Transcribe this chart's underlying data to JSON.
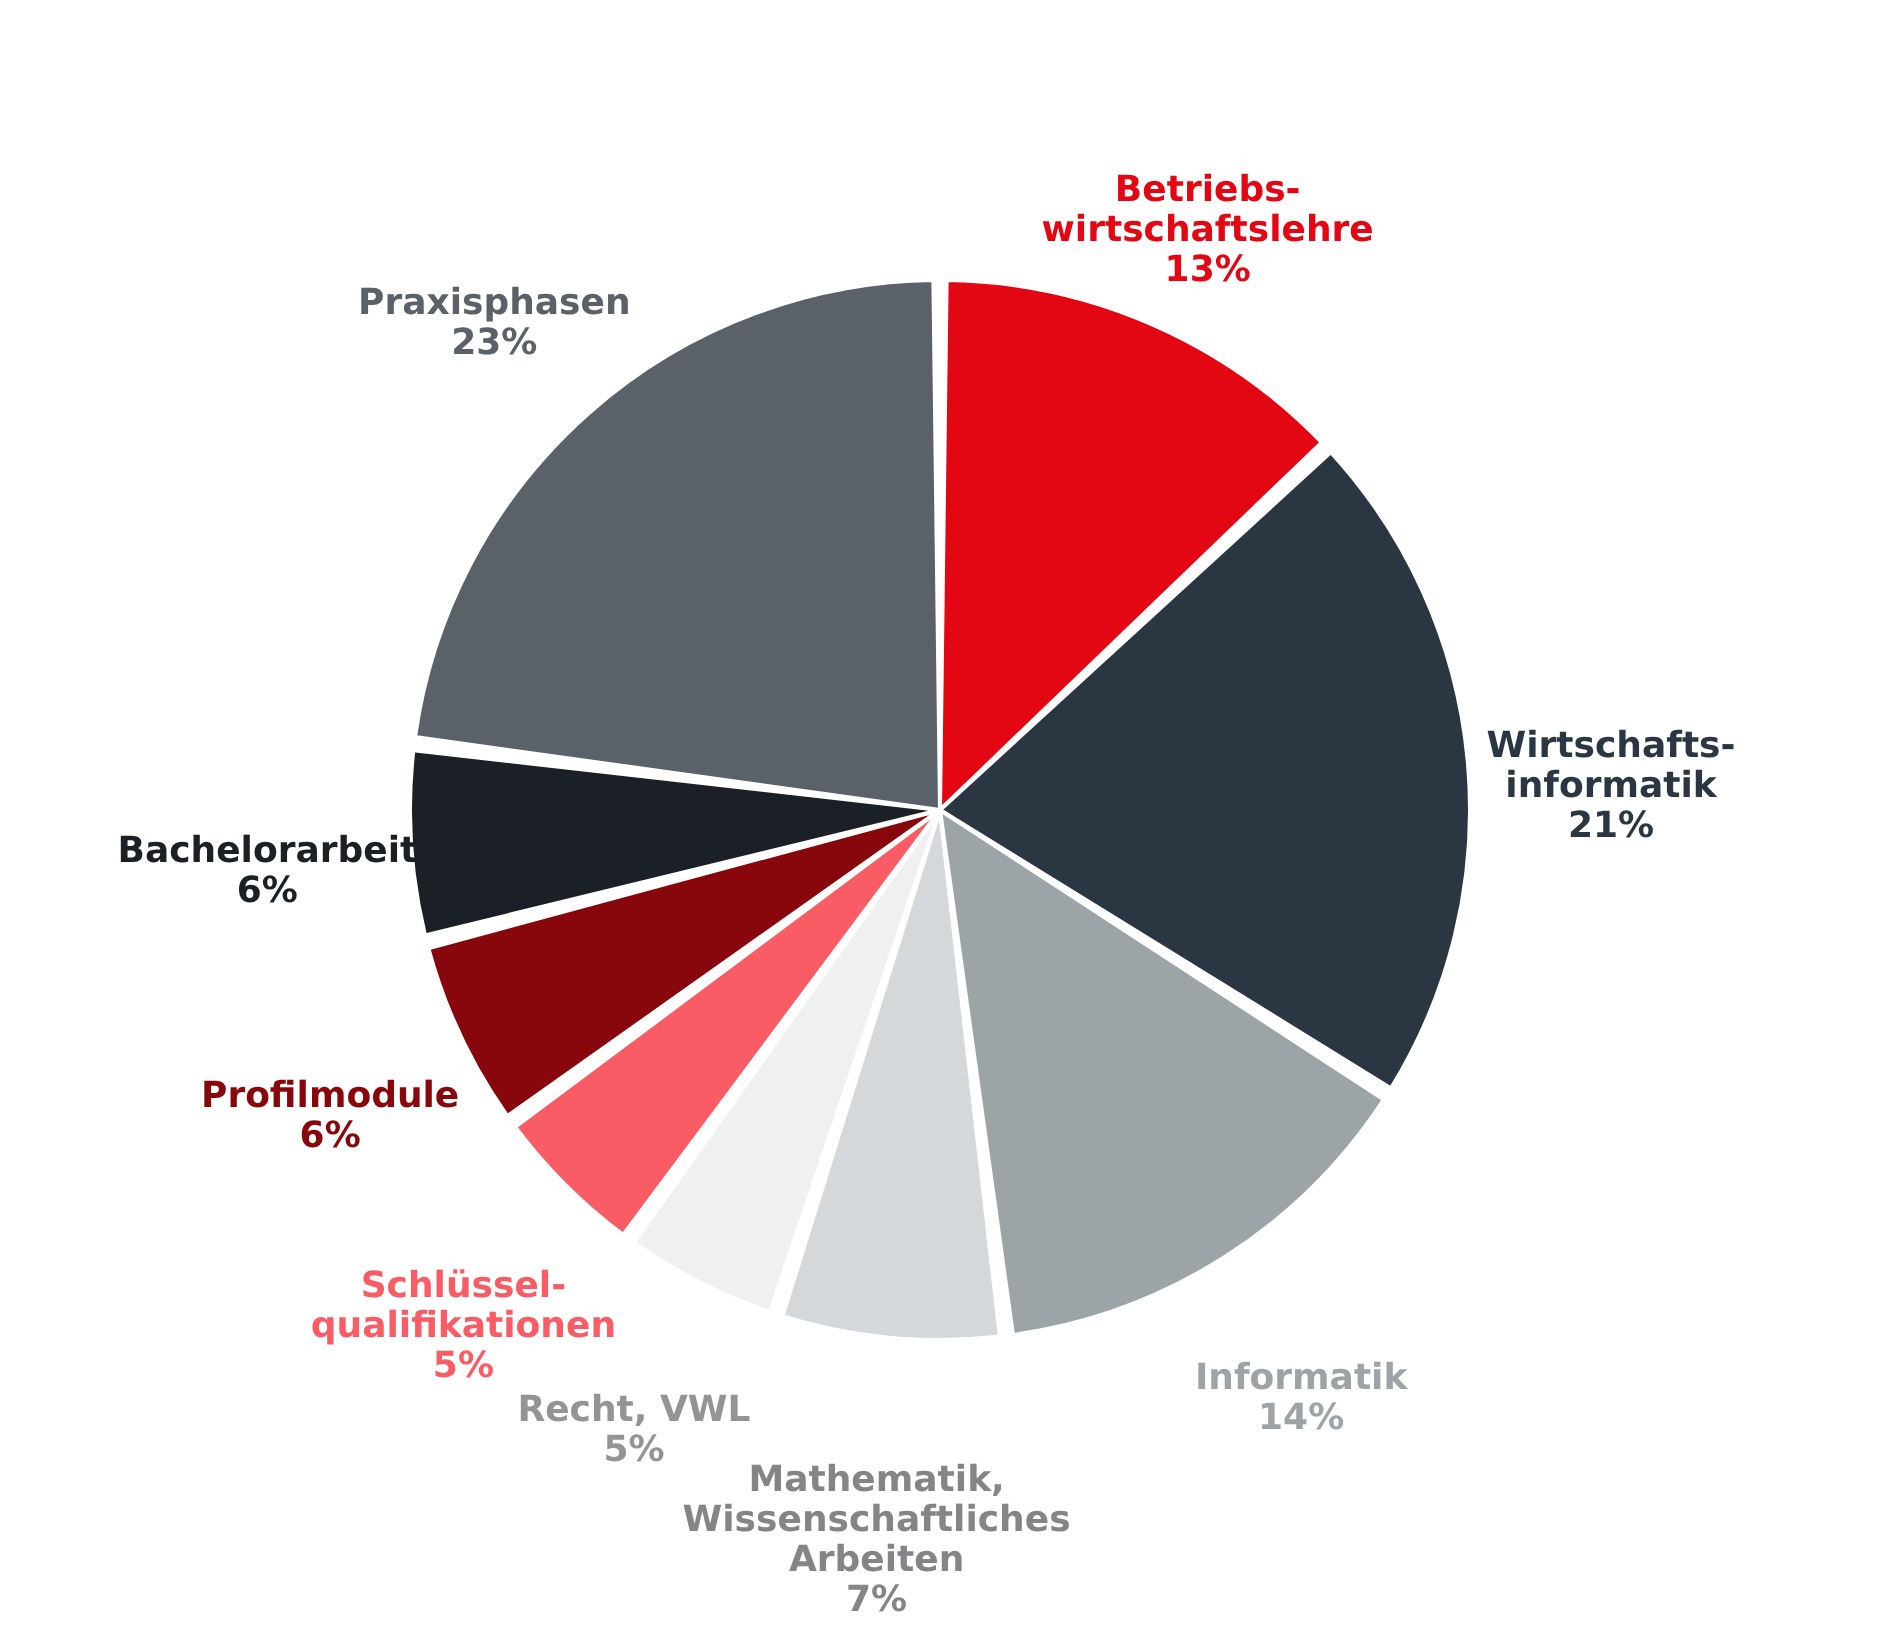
{
  "chart_data": {
    "type": "pie",
    "categories": [
      "Betriebs-\nwirtschaftslehre",
      "Wirtschafts-\ninformatik",
      "Informatik",
      "Mathematik,\nWissenschaftliches\nArbeiten",
      "Recht, VWL",
      "Schlüssel-\nqualifikationen",
      "Profilmodule",
      "Bachelorarbeit",
      "Praxisphasen"
    ],
    "values": [
      13,
      21,
      14,
      7,
      5,
      5,
      6,
      6,
      23
    ],
    "value_labels": [
      "13%",
      "21%",
      "14%",
      "7%",
      "5%",
      "5%",
      "6%",
      "6%",
      "23%"
    ],
    "colors": [
      "#e30613",
      "#2a3641",
      "#9da4a8",
      "#d5d8da",
      "#eef0f1",
      "#f95c64",
      "#88070d",
      "#1b2027",
      "#5a6168"
    ]
  }
}
